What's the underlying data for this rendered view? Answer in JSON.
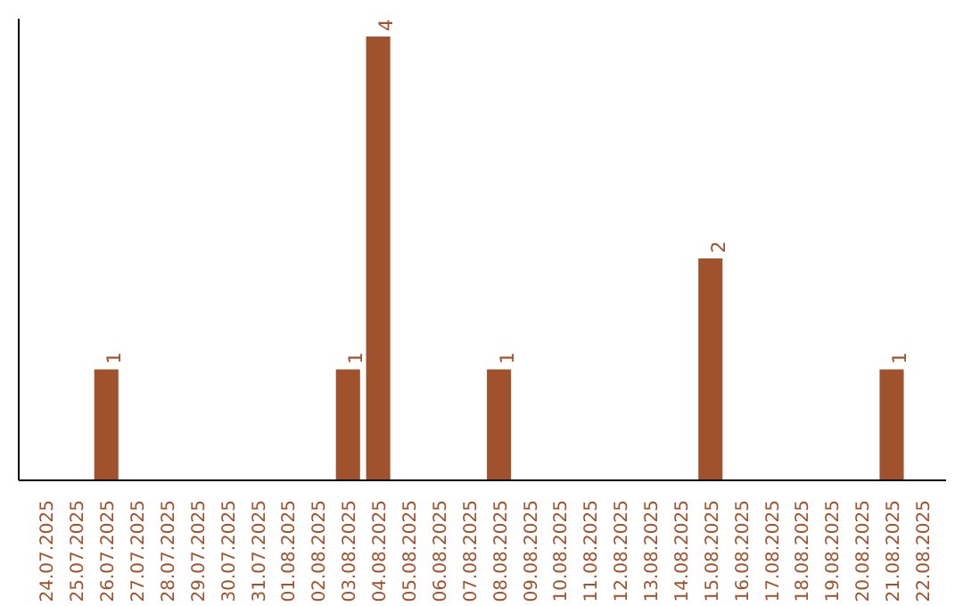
{
  "chart_data": {
    "type": "bar",
    "categories": [
      "24.07.2025",
      "25.07.2025",
      "26.07.2025",
      "27.07.2025",
      "28.07.2025",
      "29.07.2025",
      "30.07.2025",
      "31.07.2025",
      "01.08.2025",
      "02.08.2025",
      "03.08.2025",
      "04.08.2025",
      "05.08.2025",
      "06.08.2025",
      "07.08.2025",
      "08.08.2025",
      "09.08.2025",
      "10.08.2025",
      "11.08.2025",
      "12.08.2025",
      "13.08.2025",
      "14.08.2025",
      "15.08.2025",
      "16.08.2025",
      "17.08.2025",
      "18.08.2025",
      "19.08.2025",
      "20.08.2025",
      "21.08.2025",
      "22.08.2025"
    ],
    "values": [
      0,
      0,
      1,
      0,
      0,
      0,
      0,
      0,
      0,
      0,
      1,
      4,
      0,
      0,
      0,
      1,
      0,
      0,
      0,
      0,
      0,
      0,
      2,
      0,
      0,
      0,
      0,
      0,
      1,
      0
    ],
    "value_labels": [
      null,
      null,
      "1",
      null,
      null,
      null,
      null,
      null,
      null,
      null,
      "1",
      "4",
      null,
      null,
      null,
      "1",
      null,
      null,
      null,
      null,
      null,
      null,
      "2",
      null,
      null,
      null,
      null,
      null,
      "1",
      null
    ],
    "color": "#a0522d",
    "grid": false,
    "tick_labels": "x"
  }
}
